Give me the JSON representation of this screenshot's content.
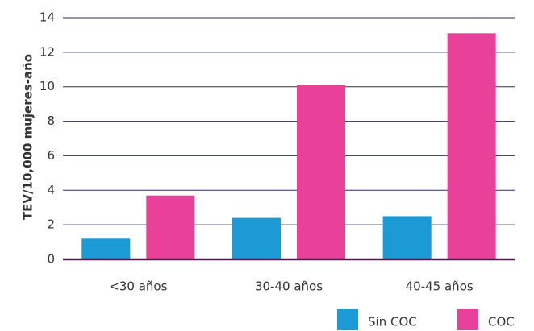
{
  "chart_data": {
    "type": "bar",
    "y_label": "TEV/10,000 mujeres-año",
    "categories": [
      "<30 años",
      "30-40 años",
      "40-45 años"
    ],
    "series": [
      {
        "name": "Sin COC",
        "color": "#1b9ad6",
        "values": [
          1.2,
          2.4,
          2.5
        ]
      },
      {
        "name": "COC",
        "color": "#e9409a",
        "values": [
          3.7,
          10.1,
          13.1
        ]
      }
    ],
    "ylim": [
      0,
      14
    ],
    "yticks": [
      0,
      2,
      4,
      6,
      8,
      10,
      12,
      14
    ],
    "grid": true
  }
}
